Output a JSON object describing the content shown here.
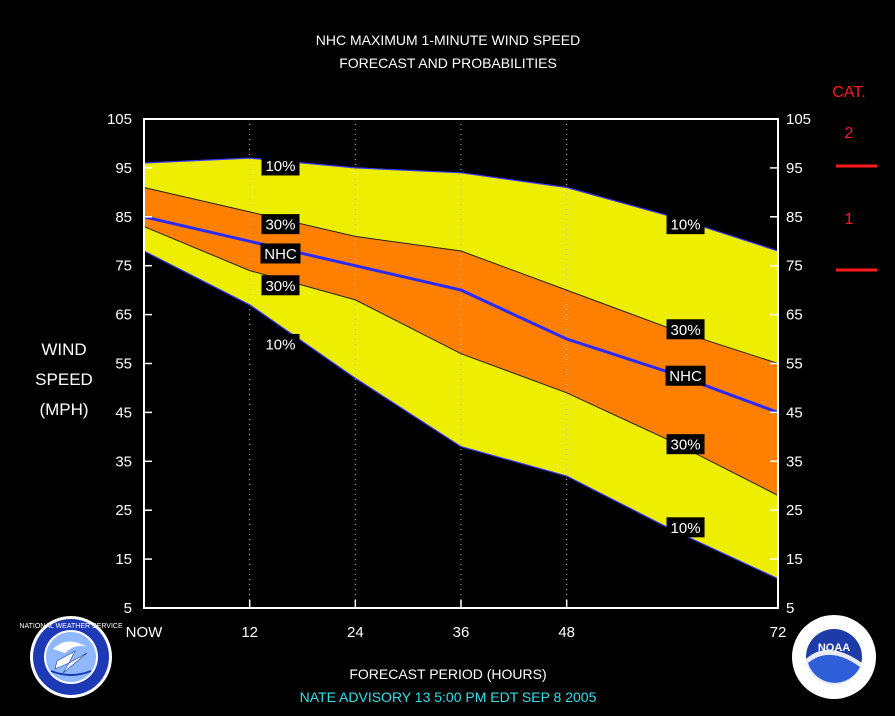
{
  "chart_data": {
    "type": "area",
    "title": "NHC MAXIMUM 1-MINUTE WIND SPEED",
    "subtitle": "FORECAST AND PROBABILITIES",
    "xlabel": "FORECAST PERIOD (HOURS)",
    "ylabel": [
      "WIND",
      "SPEED",
      "(MPH)"
    ],
    "xlim": [
      0,
      72
    ],
    "ylim": [
      5,
      105
    ],
    "x_ticks": [
      {
        "value": 0,
        "label": "NOW"
      },
      {
        "value": 12,
        "label": "12"
      },
      {
        "value": 24,
        "label": "24"
      },
      {
        "value": 36,
        "label": "36"
      },
      {
        "value": 48,
        "label": "48"
      },
      {
        "value": 72,
        "label": "72"
      }
    ],
    "y_ticks": [
      105,
      95,
      85,
      75,
      65,
      55,
      45,
      35,
      25,
      15,
      5
    ],
    "x": [
      0,
      12,
      24,
      36,
      48,
      60,
      72
    ],
    "series": [
      {
        "name": "10%",
        "role": "upper-10",
        "values": [
          96,
          97,
          95,
          94,
          91,
          85,
          78
        ]
      },
      {
        "name": "30%",
        "role": "upper-30",
        "values": [
          91,
          86,
          81,
          78,
          70,
          62,
          55
        ]
      },
      {
        "name": "NHC",
        "role": "nhc",
        "values": [
          85,
          80,
          75,
          70,
          60,
          53,
          45
        ]
      },
      {
        "name": "30%",
        "role": "lower-30",
        "values": [
          83,
          74,
          68,
          57,
          49,
          39,
          28
        ]
      },
      {
        "name": "10%",
        "role": "lower-10",
        "values": [
          78,
          67,
          52,
          38,
          32,
          21,
          11
        ]
      }
    ],
    "labels": [
      {
        "text": "10%",
        "x": 15.5,
        "y": 95.5
      },
      {
        "text": "30%",
        "x": 15.5,
        "y": 83.5
      },
      {
        "text": "NHC",
        "x": 15.5,
        "y": 77.5
      },
      {
        "text": "30%",
        "x": 15.5,
        "y": 71
      },
      {
        "text": "10%",
        "x": 15.5,
        "y": 59
      },
      {
        "text": "10%",
        "x": 61.5,
        "y": 83.5
      },
      {
        "text": "30%",
        "x": 61.5,
        "y": 62
      },
      {
        "text": "NHC",
        "x": 61.5,
        "y": 52.5
      },
      {
        "text": "30%",
        "x": 61.5,
        "y": 38.5
      },
      {
        "text": "10%",
        "x": 61.5,
        "y": 21.5
      }
    ],
    "colors": {
      "outer_band": "#eeee00",
      "inner_band": "#ff8000",
      "nhc_line": "#2a2aff",
      "grid": "#bbbbbb",
      "category": "#ff1a1a"
    },
    "grid": "vertical dotted",
    "legend": "none"
  },
  "category_scale": {
    "heading": "CAT.",
    "categories": [
      {
        "label": "2",
        "from": 96,
        "to": 110
      },
      {
        "label": "1",
        "from": 74,
        "to": 95
      }
    ]
  },
  "advisory": "NATE   ADVISORY  13 5:00  PM  EDT  SEP  8  2005",
  "logos": {
    "left": {
      "icon": "nws-logo",
      "text": "NATIONAL WEATHER SERVICE"
    },
    "right": {
      "icon": "noaa-logo",
      "text": "NOAA"
    }
  }
}
